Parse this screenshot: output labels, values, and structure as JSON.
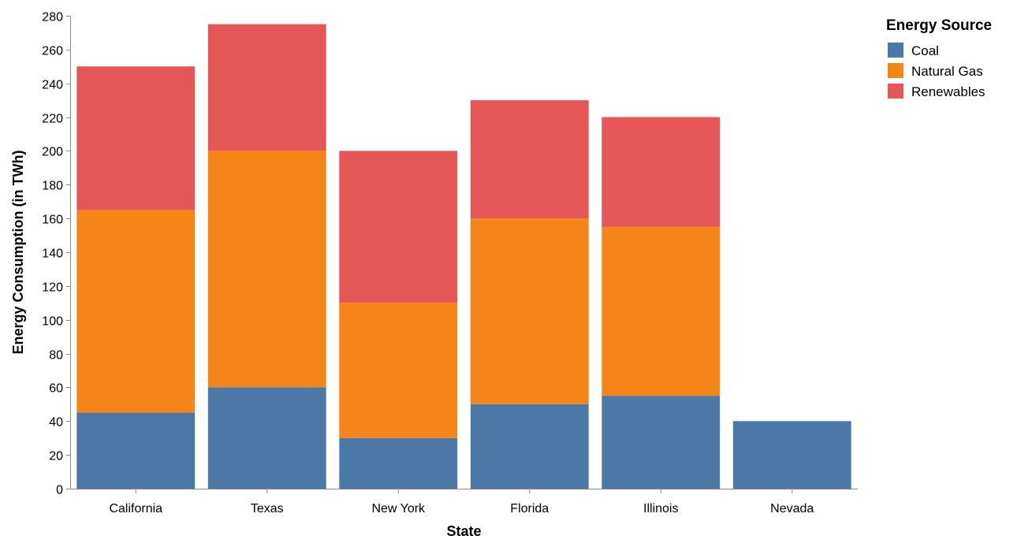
{
  "chart_data": {
    "type": "bar",
    "stacked": true,
    "title": "",
    "xlabel": "State",
    "ylabel": "Energy Consumption (in TWh)",
    "ylim": [
      0,
      280
    ],
    "yticks": [
      0,
      20,
      40,
      60,
      80,
      100,
      120,
      140,
      160,
      180,
      200,
      220,
      240,
      260,
      280
    ],
    "grid": false,
    "legend_position": "top-right",
    "legend_title": "Energy Source",
    "categories": [
      "California",
      "Texas",
      "New York",
      "Florida",
      "Illinois",
      "Nevada"
    ],
    "series": [
      {
        "name": "Coal",
        "color": "#4c78a8",
        "values": [
          45,
          60,
          30,
          50,
          55,
          40
        ]
      },
      {
        "name": "Natural Gas",
        "color": "#f58518",
        "values": [
          120,
          140,
          80,
          110,
          100,
          0
        ]
      },
      {
        "name": "Renewables",
        "color": "#e45756",
        "values": [
          85,
          75,
          90,
          70,
          65,
          0
        ]
      }
    ]
  }
}
